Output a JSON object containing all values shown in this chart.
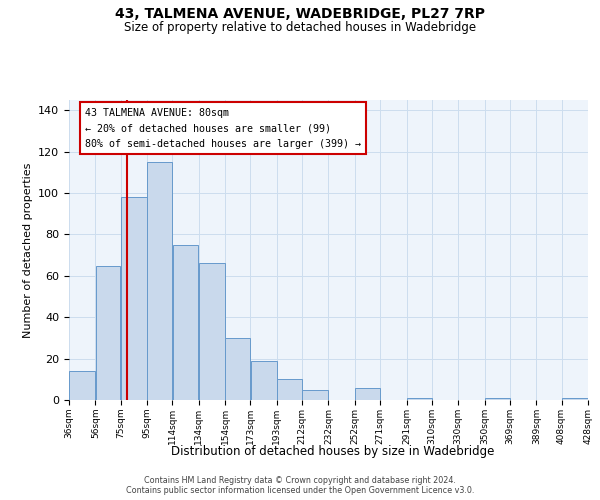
{
  "title": "43, TALMENA AVENUE, WADEBRIDGE, PL27 7RP",
  "subtitle": "Size of property relative to detached houses in Wadebridge",
  "xlabel": "Distribution of detached houses by size in Wadebridge",
  "ylabel": "Number of detached properties",
  "bin_edges": [
    36,
    56,
    75,
    95,
    114,
    134,
    154,
    173,
    193,
    212,
    232,
    252,
    271,
    291,
    310,
    330,
    350,
    369,
    389,
    408,
    428
  ],
  "bin_labels": [
    "36sqm",
    "56sqm",
    "75sqm",
    "95sqm",
    "114sqm",
    "134sqm",
    "154sqm",
    "173sqm",
    "193sqm",
    "212sqm",
    "232sqm",
    "252sqm",
    "271sqm",
    "291sqm",
    "310sqm",
    "330sqm",
    "350sqm",
    "369sqm",
    "389sqm",
    "408sqm",
    "428sqm"
  ],
  "counts": [
    14,
    65,
    98,
    115,
    75,
    66,
    30,
    19,
    10,
    5,
    0,
    6,
    0,
    1,
    0,
    0,
    1,
    0,
    0,
    1
  ],
  "bar_facecolor": "#c9d9ec",
  "bar_edgecolor": "#6699cc",
  "grid_color": "#ccddee",
  "background_color": "#eef4fb",
  "vline_x": 80,
  "vline_color": "#cc0000",
  "ylim": [
    0,
    145
  ],
  "yticks": [
    0,
    20,
    40,
    60,
    80,
    100,
    120,
    140
  ],
  "annotation_title": "43 TALMENA AVENUE: 80sqm",
  "annotation_line1": "← 20% of detached houses are smaller (99)",
  "annotation_line2": "80% of semi-detached houses are larger (399) →",
  "footer1": "Contains HM Land Registry data © Crown copyright and database right 2024.",
  "footer2": "Contains public sector information licensed under the Open Government Licence v3.0."
}
